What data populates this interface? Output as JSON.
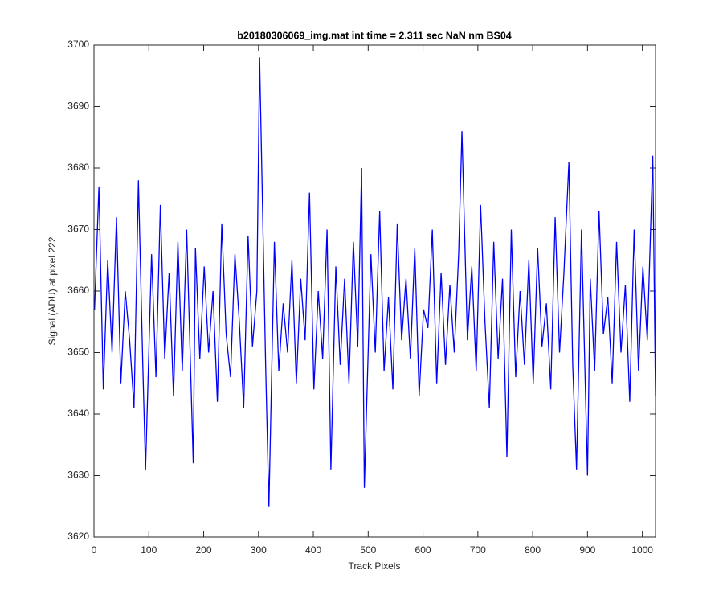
{
  "chart_data": {
    "type": "line",
    "title": "b20180306069_img.mat int time = 2.311 sec  NaN nm BS04",
    "x_label": "Track Pixels",
    "y_label": "Signal (ADU) at pixel 222",
    "color": "#0000ff",
    "xlim": [
      0,
      1024
    ],
    "xticks": [
      0,
      100,
      200,
      300,
      400,
      500,
      600,
      700,
      800,
      900,
      1000
    ],
    "ylim": [
      3620,
      3700
    ],
    "yticks": [
      3620,
      3630,
      3640,
      3650,
      3660,
      3670,
      3680,
      3690,
      3700
    ],
    "x": [
      1,
      9,
      17,
      25,
      33,
      41,
      49,
      57,
      65,
      73,
      81,
      89,
      94,
      105,
      113,
      121,
      129,
      137,
      145,
      153,
      161,
      169,
      181,
      185,
      193,
      201,
      209,
      217,
      225,
      233,
      241,
      249,
      257,
      265,
      273,
      281,
      289,
      297,
      302,
      313,
      319,
      329,
      337,
      345,
      353,
      361,
      369,
      377,
      385,
      393,
      401,
      409,
      417,
      425,
      432,
      441,
      449,
      457,
      465,
      473,
      481,
      488,
      493,
      505,
      513,
      521,
      529,
      537,
      545,
      553,
      561,
      569,
      577,
      585,
      593,
      601,
      609,
      617,
      625,
      633,
      641,
      649,
      657,
      665,
      671,
      681,
      689,
      697,
      705,
      713,
      721,
      729,
      737,
      745,
      753,
      761,
      769,
      777,
      785,
      793,
      801,
      809,
      817,
      825,
      833,
      841,
      849,
      857,
      866,
      873,
      880,
      889,
      900,
      905,
      913,
      921,
      929,
      937,
      945,
      953,
      961,
      969,
      977,
      985,
      993,
      1001,
      1009,
      1019,
      1024
    ],
    "values": [
      3657,
      3677,
      3644,
      3665,
      3650,
      3672,
      3645,
      3660,
      3652,
      3641,
      3678,
      3648,
      3631,
      3666,
      3646,
      3674,
      3649,
      3663,
      3643,
      3668,
      3647,
      3670,
      3632,
      3667,
      3649,
      3664,
      3650,
      3660,
      3642,
      3671,
      3653,
      3646,
      3666,
      3655,
      3641,
      3669,
      3651,
      3660,
      3698,
      3648,
      3625,
      3668,
      3647,
      3658,
      3650,
      3665,
      3645,
      3662,
      3652,
      3676,
      3644,
      3660,
      3649,
      3670,
      3631,
      3664,
      3648,
      3662,
      3645,
      3668,
      3651,
      3680,
      3628,
      3666,
      3650,
      3673,
      3647,
      3659,
      3644,
      3671,
      3652,
      3662,
      3649,
      3667,
      3643,
      3657,
      3654,
      3670,
      3645,
      3663,
      3648,
      3661,
      3650,
      3666,
      3686,
      3652,
      3664,
      3647,
      3674,
      3655,
      3641,
      3668,
      3649,
      3662,
      3633,
      3670,
      3646,
      3660,
      3648,
      3665,
      3645,
      3667,
      3651,
      3658,
      3644,
      3672,
      3650,
      3663,
      3681,
      3648,
      3631,
      3670,
      3630,
      3662,
      3647,
      3673,
      3653,
      3659,
      3645,
      3668,
      3650,
      3661,
      3642,
      3670,
      3647,
      3664,
      3652,
      3682,
      3643
    ]
  }
}
